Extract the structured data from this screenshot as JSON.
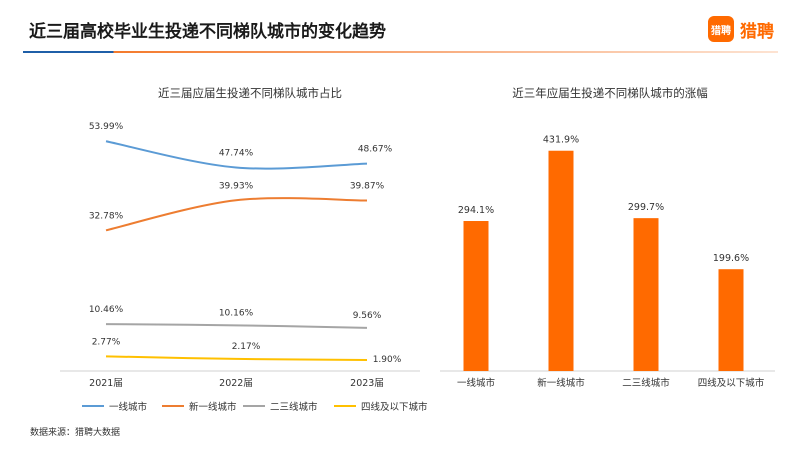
{
  "header": {
    "title": "近三届高校毕业生投递不同梯队城市的变化趋势",
    "brand_logo_text": "猎聘",
    "brand_name": "猎聘",
    "brand_color": "#ff6a00"
  },
  "source_note": "数据来源：猎聘大数据",
  "chart_data": [
    {
      "type": "line",
      "title": "近三届应届生投递不同梯队城市占比",
      "categories": [
        "2021届",
        "2022届",
        "2023届"
      ],
      "series": [
        {
          "name": "一线城市",
          "color": "#5b9bd5",
          "values": [
            53.99,
            47.74,
            48.67
          ],
          "labels": [
            "53.99%",
            "47.74%",
            "48.67%"
          ]
        },
        {
          "name": "新一线城市",
          "color": "#ed7d31",
          "values": [
            32.78,
            39.93,
            39.87
          ],
          "labels": [
            "32.78%",
            "39.93%",
            "39.87%"
          ]
        },
        {
          "name": "二三线城市",
          "color": "#a5a5a5",
          "values": [
            10.46,
            10.16,
            9.56
          ],
          "labels": [
            "10.46%",
            "10.16%",
            "9.56%"
          ]
        },
        {
          "name": "四线及以下城市",
          "color": "#ffc000",
          "values": [
            2.77,
            2.17,
            1.9
          ],
          "labels": [
            "2.77%",
            "2.17%",
            "1.90%"
          ]
        }
      ],
      "legend": "bottom",
      "grid": false
    },
    {
      "type": "bar",
      "title": "近三年应届生投递不同梯队城市的涨幅",
      "categories": [
        "一线城市",
        "新一线城市",
        "二三线城市",
        "四线及以下城市"
      ],
      "values": [
        294.1,
        431.9,
        299.7,
        199.6
      ],
      "labels": [
        "294.1%",
        "431.9%",
        "299.7%",
        "199.6%"
      ],
      "color": "#ff6a00",
      "grid": false
    }
  ]
}
